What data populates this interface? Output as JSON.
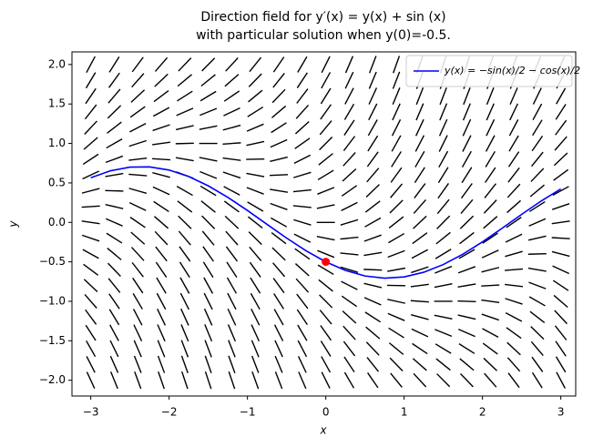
{
  "chart_data": {
    "type": "direction_field",
    "title": [
      "Direction field for y′(x) = y(x) + sin (x)",
      "with particular solution when y(0)=-0.5."
    ],
    "xlabel": "x",
    "ylabel": "y",
    "xlim": [
      -3.24,
      3.19
    ],
    "ylim": [
      -2.2,
      2.16
    ],
    "xticks": [
      {
        "value": -3,
        "label": "−3"
      },
      {
        "value": -2,
        "label": "−2"
      },
      {
        "value": -1,
        "label": "−1"
      },
      0,
      1,
      2,
      3
    ],
    "yticks": [
      {
        "value": -2,
        "label": "−2.0"
      },
      {
        "value": -1.5,
        "label": "−1.5"
      },
      {
        "value": -1,
        "label": "−1.0"
      },
      {
        "value": -0.5,
        "label": "−0.5"
      },
      {
        "value": 0,
        "label": "0.0"
      },
      0.5,
      {
        "value": 1,
        "label": "1.0"
      },
      1.5,
      {
        "value": 2,
        "label": "2.0"
      }
    ],
    "legend": "upper right",
    "field": {
      "color": "#000000",
      "x": [
        -3,
        -2.7,
        -2.4,
        -2.1,
        -1.8,
        -1.5,
        -1.2,
        -0.9,
        -0.6,
        -0.3,
        0,
        0.3,
        0.6,
        0.9,
        1.2,
        1.5,
        1.8,
        2.1,
        2.4,
        2.7,
        3
      ],
      "y": [
        -2,
        -1.8,
        -1.6,
        -1.4,
        -1.2,
        -1,
        -0.8,
        -0.6,
        -0.4,
        -0.2,
        0,
        0.2,
        0.4,
        0.6,
        0.8,
        1,
        1.2,
        1.4,
        1.6,
        1.8,
        2
      ],
      "slopes": [
        [
          -2.14,
          -2.43,
          -2.68,
          -2.86,
          -2.97,
          -3,
          -2.93,
          -2.78,
          -2.56,
          -2.3,
          -2,
          -1.7,
          -1.44,
          -1.22,
          -1.07,
          -1,
          -1.03,
          -1.14,
          -1.32,
          -1.57,
          -1.86
        ],
        [
          -1.94,
          -2.23,
          -2.48,
          -2.66,
          -2.77,
          -2.8,
          -2.73,
          -2.58,
          -2.36,
          -2.1,
          -1.8,
          -1.5,
          -1.24,
          -1.02,
          -0.87,
          -0.8,
          -0.83,
          -0.94,
          -1.12,
          -1.37,
          -1.66
        ],
        [
          -1.74,
          -2.03,
          -2.28,
          -2.46,
          -2.57,
          -2.6,
          -2.53,
          -2.38,
          -2.16,
          -1.9,
          -1.6,
          -1.3,
          -1.04,
          -0.82,
          -0.67,
          -0.6,
          -0.63,
          -0.74,
          -0.92,
          -1.17,
          -1.46
        ],
        [
          -1.54,
          -1.83,
          -2.08,
          -2.26,
          -2.37,
          -2.4,
          -2.33,
          -2.18,
          -1.96,
          -1.7,
          -1.4,
          -1.1,
          -0.84,
          -0.62,
          -0.47,
          -0.4,
          -0.43,
          -0.54,
          -0.72,
          -0.97,
          -1.26
        ],
        [
          -1.34,
          -1.63,
          -1.88,
          -2.06,
          -2.17,
          -2.2,
          -2.13,
          -1.98,
          -1.76,
          -1.5,
          -1.2,
          -0.9,
          -0.64,
          -0.42,
          -0.27,
          -0.2,
          -0.23,
          -0.34,
          -0.52,
          -0.77,
          -1.06
        ],
        [
          -1.14,
          -1.43,
          -1.68,
          -1.86,
          -1.97,
          -2,
          -1.93,
          -1.78,
          -1.56,
          -1.3,
          -1,
          -0.7,
          -0.44,
          -0.22,
          -0.07,
          0,
          -0.03,
          -0.14,
          -0.32,
          -0.57,
          -0.86
        ],
        [
          -0.94,
          -1.23,
          -1.48,
          -1.66,
          -1.77,
          -1.8,
          -1.73,
          -1.58,
          -1.36,
          -1.1,
          -0.8,
          -0.5,
          -0.24,
          -0.02,
          0.13,
          0.2,
          0.17,
          0.06,
          -0.12,
          -0.37,
          -0.66
        ],
        [
          -0.74,
          -1.03,
          -1.28,
          -1.46,
          -1.57,
          -1.6,
          -1.53,
          -1.38,
          -1.16,
          -0.9,
          -0.6,
          -0.3,
          -0.04,
          0.18,
          0.33,
          0.4,
          0.37,
          0.26,
          0.08,
          -0.17,
          -0.46
        ],
        [
          -0.54,
          -0.83,
          -1.08,
          -1.26,
          -1.37,
          -1.4,
          -1.33,
          -1.18,
          -0.96,
          -0.7,
          -0.4,
          -0.1,
          0.16,
          0.38,
          0.53,
          0.6,
          0.57,
          0.46,
          0.28,
          0.03,
          -0.26
        ],
        [
          -0.34,
          -0.63,
          -0.88,
          -1.06,
          -1.17,
          -1.2,
          -1.13,
          -0.98,
          -0.76,
          -0.5,
          -0.2,
          0.1,
          0.36,
          0.58,
          0.73,
          0.8,
          0.77,
          0.66,
          0.48,
          0.23,
          -0.06
        ],
        [
          -0.14,
          -0.43,
          -0.68,
          -0.86,
          -0.97,
          -1,
          -0.93,
          -0.78,
          -0.56,
          -0.3,
          0,
          0.3,
          0.56,
          0.78,
          0.93,
          1,
          0.97,
          0.86,
          0.68,
          0.43,
          0.14
        ],
        [
          0.06,
          -0.23,
          -0.48,
          -0.66,
          -0.77,
          -0.8,
          -0.73,
          -0.58,
          -0.36,
          -0.1,
          0.2,
          0.5,
          0.76,
          0.98,
          1.13,
          1.2,
          1.17,
          1.06,
          0.88,
          0.63,
          0.34
        ],
        [
          0.26,
          -0.03,
          -0.28,
          -0.46,
          -0.57,
          -0.6,
          -0.53,
          -0.38,
          -0.16,
          0.1,
          0.4,
          0.7,
          0.96,
          1.18,
          1.33,
          1.4,
          1.37,
          1.26,
          1.08,
          0.83,
          0.54
        ],
        [
          0.46,
          0.17,
          -0.08,
          -0.26,
          -0.37,
          -0.4,
          -0.33,
          -0.18,
          0.04,
          0.3,
          0.6,
          0.9,
          1.16,
          1.38,
          1.53,
          1.6,
          1.57,
          1.46,
          1.28,
          1.03,
          0.74
        ],
        [
          0.66,
          0.37,
          0.12,
          -0.06,
          -0.17,
          -0.2,
          -0.13,
          0.02,
          0.24,
          0.5,
          0.8,
          1.1,
          1.36,
          1.58,
          1.73,
          1.8,
          1.77,
          1.66,
          1.48,
          1.23,
          0.94
        ],
        [
          0.86,
          0.57,
          0.32,
          0.14,
          0.03,
          0,
          0.07,
          0.22,
          0.44,
          0.7,
          1,
          1.3,
          1.56,
          1.78,
          1.93,
          2,
          1.97,
          1.86,
          1.68,
          1.43,
          1.14
        ],
        [
          1.06,
          0.77,
          0.52,
          0.34,
          0.23,
          0.2,
          0.27,
          0.42,
          0.64,
          0.9,
          1.2,
          1.5,
          1.76,
          1.98,
          2.13,
          2.2,
          2.17,
          2.06,
          1.88,
          1.63,
          1.34
        ],
        [
          1.26,
          0.97,
          0.72,
          0.54,
          0.43,
          0.4,
          0.47,
          0.62,
          0.84,
          1.1,
          1.4,
          1.7,
          1.96,
          2.18,
          2.33,
          2.4,
          2.37,
          2.26,
          2.08,
          1.83,
          1.54
        ],
        [
          1.46,
          1.17,
          0.92,
          0.74,
          0.63,
          0.6,
          0.67,
          0.82,
          1.04,
          1.3,
          1.6,
          1.9,
          2.16,
          2.38,
          2.53,
          2.6,
          2.57,
          2.46,
          2.28,
          2.03,
          1.74
        ],
        [
          1.66,
          1.37,
          1.12,
          0.94,
          0.83,
          0.8,
          0.87,
          1.02,
          1.24,
          1.5,
          1.8,
          2.1,
          2.36,
          2.58,
          2.73,
          2.8,
          2.77,
          2.66,
          2.48,
          2.23,
          1.94
        ],
        [
          1.86,
          1.57,
          1.32,
          1.14,
          1.03,
          1,
          1.07,
          1.22,
          1.44,
          1.7,
          2,
          2.3,
          2.56,
          2.78,
          2.93,
          3,
          2.97,
          2.86,
          2.68,
          2.43,
          2.14
        ]
      ]
    },
    "series": [
      {
        "name": "y(x) = −sin(x)/2 − cos(x)/2",
        "color": "#0000ff",
        "x": [
          -3,
          -2.75,
          -2.5,
          -2.25,
          -2,
          -1.75,
          -1.5,
          -1.25,
          -1,
          -0.75,
          -0.5,
          -0.25,
          0,
          0.25,
          0.5,
          0.75,
          1,
          1.25,
          1.5,
          1.75,
          2,
          2.25,
          2.5,
          2.75,
          3
        ],
        "values": [
          0.566,
          0.653,
          0.7,
          0.703,
          0.663,
          0.581,
          0.463,
          0.317,
          0.151,
          -0.025,
          -0.199,
          -0.361,
          -0.5,
          -0.608,
          -0.679,
          -0.707,
          -0.691,
          -0.632,
          -0.534,
          -0.403,
          -0.247,
          -0.075,
          0.101,
          0.271,
          0.424
        ]
      }
    ],
    "point": {
      "x": 0,
      "y": -0.5,
      "color": "#ff0000"
    }
  }
}
